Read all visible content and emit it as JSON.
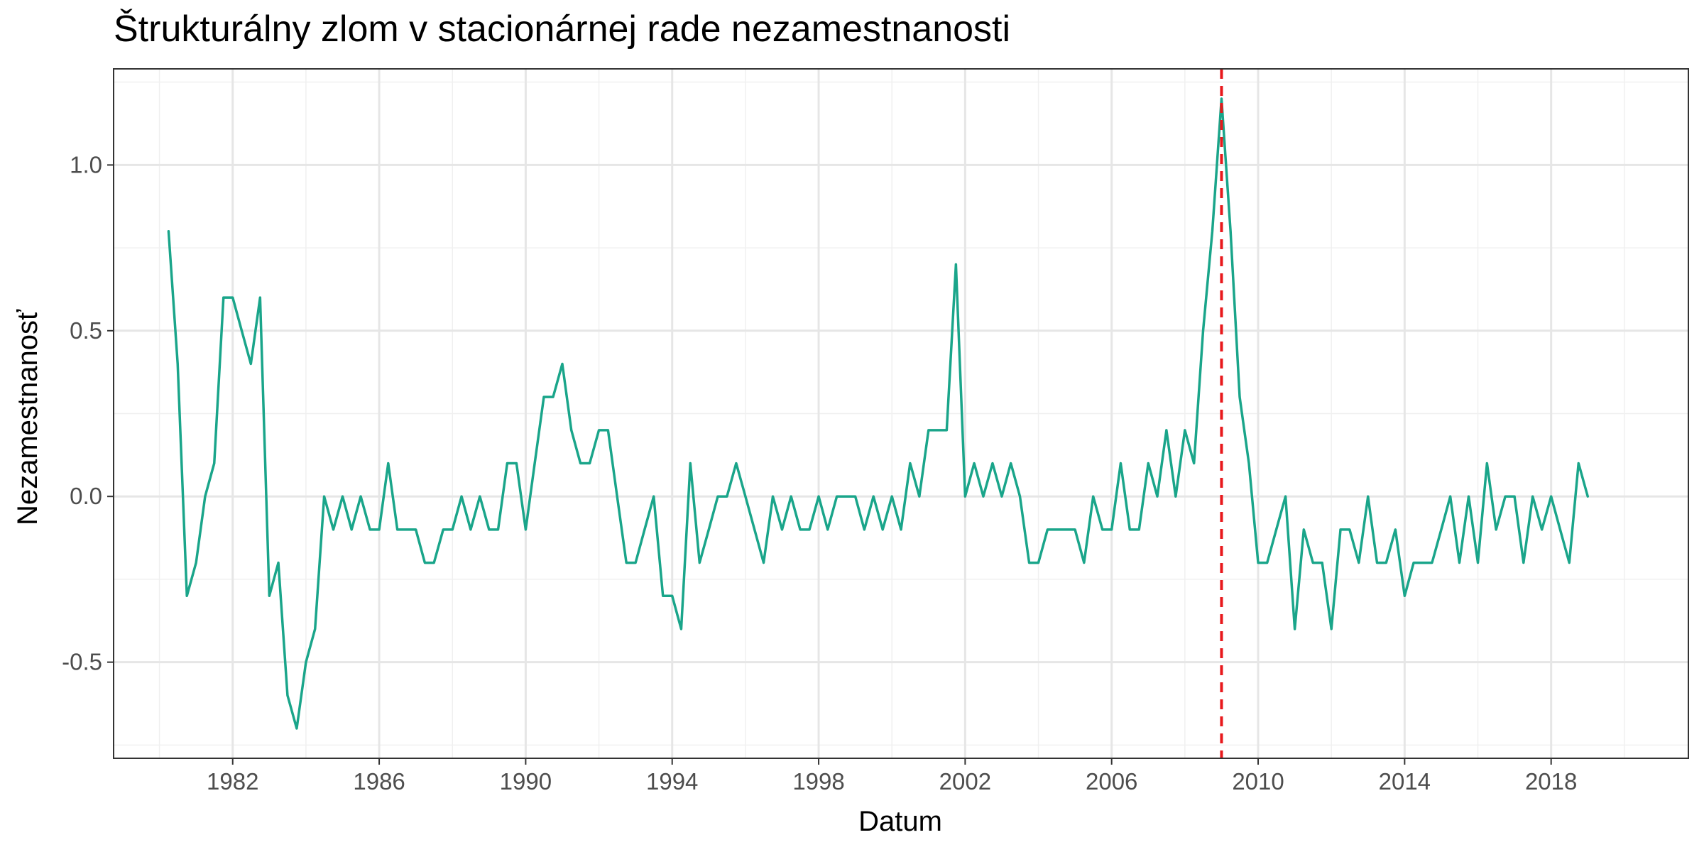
{
  "chart_data": {
    "type": "line",
    "title": "Štrukturálny zlom v stacionárnej rade nezamestnanosti",
    "xlabel": "Datum",
    "ylabel": "Nezamestnanosť",
    "x_ticks": [
      "1982",
      "1986",
      "1990",
      "1994",
      "1998",
      "2002",
      "2006",
      "2010",
      "2014",
      "2018"
    ],
    "y_ticks": [
      "-0.5",
      "0.0",
      "0.5",
      "1.0"
    ],
    "xlim": [
      "1978-10-01",
      "2021-10-01"
    ],
    "ylim": [
      -0.79,
      1.29
    ],
    "grid": true,
    "legend": "none",
    "series": [
      {
        "color": "#1aa58a",
        "x": [
          "1980-04-01",
          "1980-07-01",
          "1980-10-01",
          "1981-01-01",
          "1981-04-01",
          "1981-07-01",
          "1981-10-01",
          "1982-01-01",
          "1982-04-01",
          "1982-07-01",
          "1982-10-01",
          "1983-01-01",
          "1983-04-01",
          "1983-07-01",
          "1983-10-01",
          "1984-01-01",
          "1984-04-01",
          "1984-07-01",
          "1984-10-01",
          "1985-01-01",
          "1985-04-01",
          "1985-07-01",
          "1985-10-01",
          "1986-01-01",
          "1986-04-01",
          "1986-07-01",
          "1986-10-01",
          "1987-01-01",
          "1987-04-01",
          "1987-07-01",
          "1987-10-01",
          "1988-01-01",
          "1988-04-01",
          "1988-07-01",
          "1988-10-01",
          "1989-01-01",
          "1989-04-01",
          "1989-07-01",
          "1989-10-01",
          "1990-01-01",
          "1990-04-01",
          "1990-07-01",
          "1990-10-01",
          "1991-01-01",
          "1991-04-01",
          "1991-07-01",
          "1991-10-01",
          "1992-01-01",
          "1992-04-01",
          "1992-07-01",
          "1992-10-01",
          "1993-01-01",
          "1993-04-01",
          "1993-07-01",
          "1993-10-01",
          "1994-01-01",
          "1994-04-01",
          "1994-07-01",
          "1994-10-01",
          "1995-01-01",
          "1995-04-01",
          "1995-07-01",
          "1995-10-01",
          "1996-01-01",
          "1996-04-01",
          "1996-07-01",
          "1996-10-01",
          "1997-01-01",
          "1997-04-01",
          "1997-07-01",
          "1997-10-01",
          "1998-01-01",
          "1998-04-01",
          "1998-07-01",
          "1998-10-01",
          "1999-01-01",
          "1999-04-01",
          "1999-07-01",
          "1999-10-01",
          "2000-01-01",
          "2000-04-01",
          "2000-07-01",
          "2000-10-01",
          "2001-01-01",
          "2001-04-01",
          "2001-07-01",
          "2001-10-01",
          "2002-01-01",
          "2002-04-01",
          "2002-07-01",
          "2002-10-01",
          "2003-01-01",
          "2003-04-01",
          "2003-07-01",
          "2003-10-01",
          "2004-01-01",
          "2004-04-01",
          "2004-07-01",
          "2004-10-01",
          "2005-01-01",
          "2005-04-01",
          "2005-07-01",
          "2005-10-01",
          "2006-01-01",
          "2006-04-01",
          "2006-07-01",
          "2006-10-01",
          "2007-01-01",
          "2007-04-01",
          "2007-07-01",
          "2007-10-01",
          "2008-01-01",
          "2008-04-01",
          "2008-07-01",
          "2008-10-01",
          "2009-01-01",
          "2009-04-01",
          "2009-07-01",
          "2009-10-01",
          "2010-01-01",
          "2010-04-01",
          "2010-07-01",
          "2010-10-01",
          "2011-01-01",
          "2011-04-01",
          "2011-07-01",
          "2011-10-01",
          "2012-01-01",
          "2012-04-01",
          "2012-07-01",
          "2012-10-01",
          "2013-01-01",
          "2013-04-01",
          "2013-07-01",
          "2013-10-01",
          "2014-01-01",
          "2014-04-01",
          "2014-07-01",
          "2014-10-01",
          "2015-01-01",
          "2015-04-01",
          "2015-07-01",
          "2015-10-01",
          "2016-01-01",
          "2016-04-01",
          "2016-07-01",
          "2016-10-01",
          "2017-01-01",
          "2017-04-01",
          "2017-07-01",
          "2017-10-01",
          "2018-01-01",
          "2018-04-01",
          "2018-07-01",
          "2018-10-01",
          "2019-01-01"
        ],
        "y": [
          0.8,
          0.4,
          -0.3,
          -0.2,
          0.0,
          0.1,
          0.6,
          0.6,
          0.5,
          0.4,
          0.6,
          -0.3,
          -0.2,
          -0.6,
          -0.7,
          -0.5,
          -0.4,
          0.0,
          -0.1,
          0.0,
          -0.1,
          0.0,
          -0.1,
          -0.1,
          0.1,
          -0.1,
          -0.1,
          -0.1,
          -0.2,
          -0.2,
          -0.1,
          -0.1,
          0.0,
          -0.1,
          0.0,
          -0.1,
          -0.1,
          0.1,
          0.1,
          -0.1,
          0.1,
          0.3,
          0.3,
          0.4,
          0.2,
          0.1,
          0.1,
          0.2,
          0.2,
          0.0,
          -0.2,
          -0.2,
          -0.1,
          0.0,
          -0.3,
          -0.3,
          -0.4,
          0.1,
          -0.2,
          -0.1,
          0.0,
          0.0,
          0.1,
          0.0,
          -0.1,
          -0.2,
          0.0,
          -0.1,
          0.0,
          -0.1,
          -0.1,
          0.0,
          -0.1,
          0.0,
          0.0,
          0.0,
          -0.1,
          0.0,
          -0.1,
          0.0,
          -0.1,
          0.1,
          0.0,
          0.2,
          0.2,
          0.2,
          0.7,
          0.0,
          0.1,
          0.0,
          0.1,
          0.0,
          0.1,
          0.0,
          -0.2,
          -0.2,
          -0.1,
          -0.1,
          -0.1,
          -0.1,
          -0.2,
          0.0,
          -0.1,
          -0.1,
          0.1,
          -0.1,
          -0.1,
          0.1,
          0.0,
          0.2,
          0.0,
          0.2,
          0.1,
          0.5,
          0.8,
          1.2,
          0.8,
          0.3,
          0.1,
          -0.2,
          -0.2,
          -0.1,
          0.0,
          -0.4,
          -0.1,
          -0.2,
          -0.2,
          -0.4,
          -0.1,
          -0.1,
          -0.2,
          0.0,
          -0.2,
          -0.2,
          -0.1,
          -0.3,
          -0.2,
          -0.2,
          -0.2,
          -0.1,
          0.0,
          -0.2,
          0.0,
          -0.2,
          0.1,
          -0.1,
          0.0,
          0.0,
          -0.2,
          0.0,
          -0.1,
          0.0,
          -0.1,
          -0.2,
          0.1,
          0.0
        ]
      }
    ],
    "vlines": [
      {
        "x": "2009-01-01",
        "color": "#e8191c",
        "style": "dashed"
      }
    ]
  }
}
